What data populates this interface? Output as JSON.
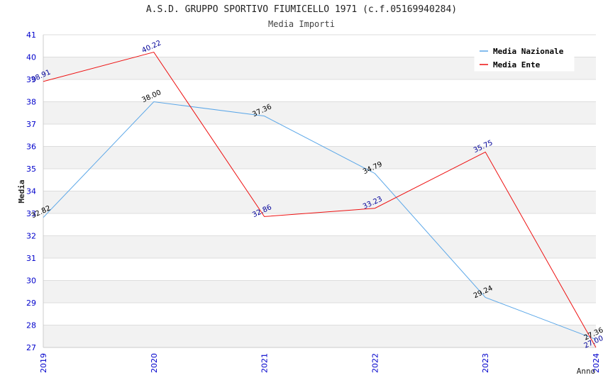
{
  "chart_data": {
    "type": "line",
    "title": "A.S.D. GRUPPO SPORTIVO FIUMICELLO 1971 (c.f.05169940284)",
    "subtitle": "Media Importi",
    "xlabel": "Anno",
    "ylabel": "Media",
    "categories": [
      "2019",
      "2020",
      "2021",
      "2022",
      "2023",
      "2024"
    ],
    "ylim": [
      27,
      41
    ],
    "y_ticks": [
      "27",
      "28",
      "29",
      "30",
      "31",
      "32",
      "33",
      "34",
      "35",
      "36",
      "37",
      "38",
      "39",
      "40",
      "41"
    ],
    "grid": true,
    "legend_position": "top-right",
    "series": [
      {
        "name": "Media Nazionale",
        "color": "#5ba7e8",
        "label_color": "#000000",
        "values": [
          32.82,
          38.0,
          37.36,
          34.79,
          29.24,
          27.36
        ],
        "labels": [
          "32.82",
          "38.00",
          "37.36",
          "34.79",
          "29.24",
          "27.36"
        ]
      },
      {
        "name": "Media Ente",
        "color": "#ee1111",
        "label_color": "#000099",
        "values": [
          38.91,
          40.22,
          32.86,
          33.23,
          35.75,
          27.0
        ],
        "labels": [
          "38.91",
          "40.22",
          "32.86",
          "33.23",
          "35.75",
          "27.00"
        ]
      }
    ],
    "axis_color": "#0000cc",
    "band_color": "#f2f2f2"
  }
}
